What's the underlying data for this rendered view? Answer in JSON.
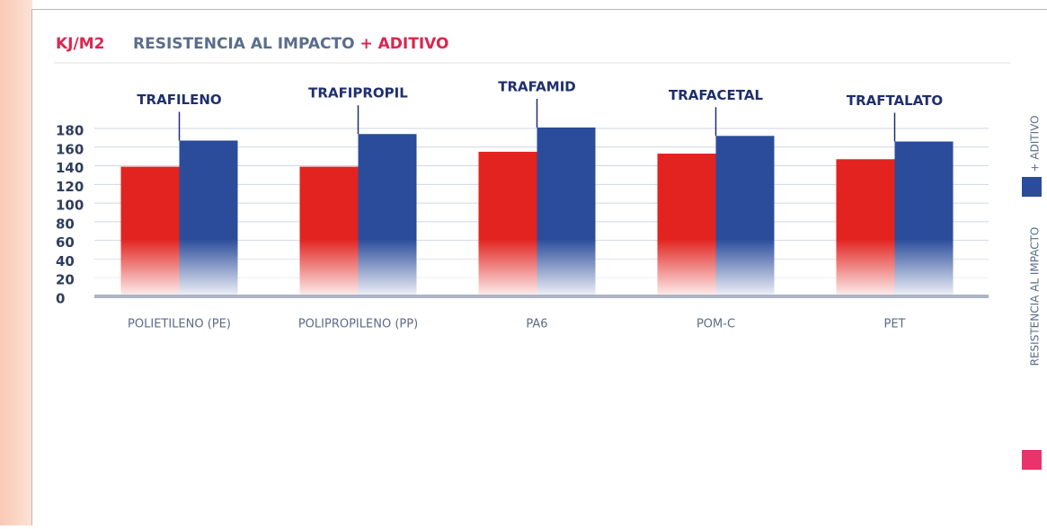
{
  "chart_data": {
    "type": "bar",
    "ylabel": "KJ/M2",
    "categories": [
      "POLIETILENO (PE)",
      "POLIPROPILENO (PP)",
      "PA6",
      "POM-C",
      "PET"
    ],
    "series": [
      {
        "name": "RESISTENCIA AL IMPACTO",
        "color": "#e2231f",
        "values": [
          139,
          139,
          155,
          153,
          147
        ]
      },
      {
        "name": "+ ADITIVO",
        "color": "#2b4c9b",
        "values": [
          167,
          174,
          181,
          172,
          166
        ]
      }
    ],
    "annotations": [
      "TRAFILENO",
      "TRAFIPROPIL",
      "TRAFAMID",
      "TRAFACETAL",
      "TRAFTALATO"
    ],
    "ylim": [
      0,
      180
    ],
    "yticks": [
      0,
      20,
      40,
      60,
      80,
      100,
      120,
      140,
      160,
      180
    ],
    "grid": true
  }
}
